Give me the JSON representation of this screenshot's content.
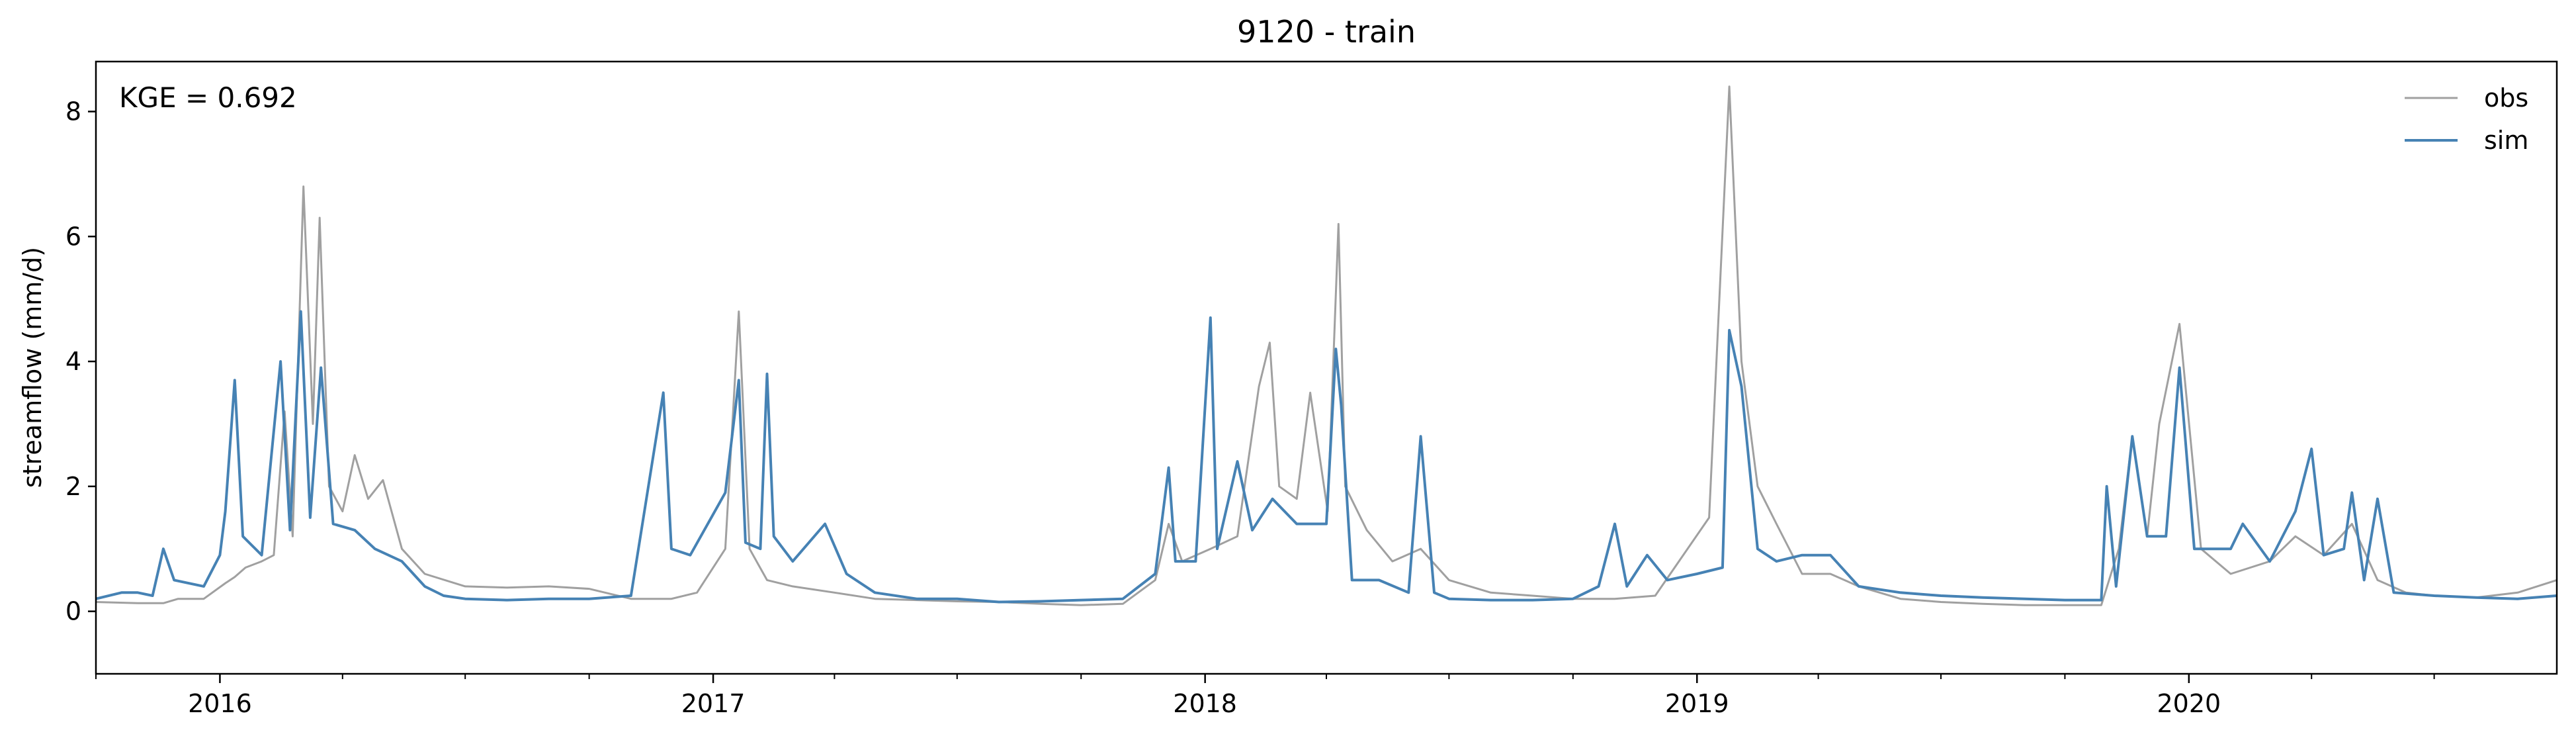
{
  "chart_data": {
    "type": "line",
    "title": "9120 - train",
    "xlabel": "",
    "ylabel": "streamflow (mm/d)",
    "annotation": "KGE = 0.692",
    "legend_placement": "top-right",
    "grid": false,
    "xlim": [
      "2015-10-01",
      "2020-09-30"
    ],
    "ylim": [
      -1,
      8.8
    ],
    "yticks": [
      0,
      2,
      4,
      6,
      8
    ],
    "xticks_major": [
      "2016",
      "2017",
      "2018",
      "2019",
      "2020"
    ],
    "x_major_dates": [
      "2016-01-01",
      "2017-01-01",
      "2018-01-01",
      "2019-01-01",
      "2020-01-01"
    ],
    "series": [
      {
        "name": "obs",
        "color": "#a0a0a0",
        "points": [
          [
            "2015-10-01",
            0.15
          ],
          [
            "2015-11-01",
            0.13
          ],
          [
            "2015-11-20",
            0.13
          ],
          [
            "2015-12-01",
            0.2
          ],
          [
            "2015-12-20",
            0.2
          ],
          [
            "2016-01-05",
            0.45
          ],
          [
            "2016-01-12",
            0.55
          ],
          [
            "2016-01-20",
            0.7
          ],
          [
            "2016-02-01",
            0.8
          ],
          [
            "2016-02-10",
            0.9
          ],
          [
            "2016-02-18",
            3.2
          ],
          [
            "2016-02-24",
            1.2
          ],
          [
            "2016-03-03",
            6.8
          ],
          [
            "2016-03-10",
            3.0
          ],
          [
            "2016-03-15",
            6.3
          ],
          [
            "2016-03-22",
            2.0
          ],
          [
            "2016-04-01",
            1.6
          ],
          [
            "2016-04-10",
            2.5
          ],
          [
            "2016-04-20",
            1.8
          ],
          [
            "2016-05-01",
            2.1
          ],
          [
            "2016-05-15",
            1.0
          ],
          [
            "2016-06-01",
            0.6
          ],
          [
            "2016-07-01",
            0.4
          ],
          [
            "2016-08-01",
            0.38
          ],
          [
            "2016-09-01",
            0.4
          ],
          [
            "2016-10-01",
            0.36
          ],
          [
            "2016-11-01",
            0.2
          ],
          [
            "2016-11-25",
            0.2
          ],
          [
            "2016-12-01",
            0.2
          ],
          [
            "2016-12-20",
            0.3
          ],
          [
            "2017-01-10",
            1.0
          ],
          [
            "2017-01-20",
            4.8
          ],
          [
            "2017-01-28",
            1.0
          ],
          [
            "2017-02-10",
            0.5
          ],
          [
            "2017-03-01",
            0.4
          ],
          [
            "2017-04-01",
            0.3
          ],
          [
            "2017-05-01",
            0.2
          ],
          [
            "2017-06-01",
            0.18
          ],
          [
            "2017-07-01",
            0.16
          ],
          [
            "2017-08-01",
            0.15
          ],
          [
            "2017-09-01",
            0.12
          ],
          [
            "2017-10-01",
            0.1
          ],
          [
            "2017-11-01",
            0.12
          ],
          [
            "2017-11-25",
            0.5
          ],
          [
            "2017-12-05",
            1.4
          ],
          [
            "2017-12-15",
            0.8
          ],
          [
            "2018-01-05",
            1.0
          ],
          [
            "2018-01-25",
            1.2
          ],
          [
            "2018-02-10",
            3.6
          ],
          [
            "2018-02-18",
            4.3
          ],
          [
            "2018-02-25",
            2.0
          ],
          [
            "2018-03-10",
            1.8
          ],
          [
            "2018-03-20",
            3.5
          ],
          [
            "2018-04-02",
            1.6
          ],
          [
            "2018-04-10",
            6.2
          ],
          [
            "2018-04-15",
            2.0
          ],
          [
            "2018-05-01",
            1.3
          ],
          [
            "2018-05-20",
            0.8
          ],
          [
            "2018-06-10",
            1.0
          ],
          [
            "2018-07-01",
            0.5
          ],
          [
            "2018-08-01",
            0.3
          ],
          [
            "2018-09-01",
            0.25
          ],
          [
            "2018-10-01",
            0.2
          ],
          [
            "2018-11-01",
            0.2
          ],
          [
            "2018-12-01",
            0.25
          ],
          [
            "2019-01-10",
            1.5
          ],
          [
            "2019-01-25",
            8.4
          ],
          [
            "2019-02-03",
            4.0
          ],
          [
            "2019-02-15",
            2.0
          ],
          [
            "2019-03-01",
            1.4
          ],
          [
            "2019-03-20",
            0.6
          ],
          [
            "2019-04-10",
            0.6
          ],
          [
            "2019-05-01",
            0.4
          ],
          [
            "2019-06-01",
            0.2
          ],
          [
            "2019-07-01",
            0.15
          ],
          [
            "2019-08-01",
            0.12
          ],
          [
            "2019-09-01",
            0.1
          ],
          [
            "2019-10-01",
            0.1
          ],
          [
            "2019-10-28",
            0.1
          ],
          [
            "2019-11-10",
            1.0
          ],
          [
            "2019-11-20",
            2.8
          ],
          [
            "2019-12-01",
            1.2
          ],
          [
            "2019-12-10",
            3.0
          ],
          [
            "2019-12-25",
            4.6
          ],
          [
            "2020-01-10",
            1.0
          ],
          [
            "2020-02-01",
            0.6
          ],
          [
            "2020-03-01",
            0.8
          ],
          [
            "2020-03-20",
            1.2
          ],
          [
            "2020-04-10",
            0.9
          ],
          [
            "2020-05-01",
            1.4
          ],
          [
            "2020-05-20",
            0.5
          ],
          [
            "2020-06-10",
            0.3
          ],
          [
            "2020-07-01",
            0.25
          ],
          [
            "2020-08-01",
            0.22
          ],
          [
            "2020-09-01",
            0.3
          ],
          [
            "2020-09-30",
            0.5
          ]
        ]
      },
      {
        "name": "sim",
        "color": "#4682b4",
        "points": [
          [
            "2015-10-01",
            0.2
          ],
          [
            "2015-10-20",
            0.3
          ],
          [
            "2015-11-01",
            0.3
          ],
          [
            "2015-11-12",
            0.25
          ],
          [
            "2015-11-20",
            1.0
          ],
          [
            "2015-11-28",
            0.5
          ],
          [
            "2015-12-20",
            0.4
          ],
          [
            "2016-01-01",
            0.9
          ],
          [
            "2016-01-05",
            1.6
          ],
          [
            "2016-01-12",
            3.7
          ],
          [
            "2016-01-18",
            1.2
          ],
          [
            "2016-02-01",
            0.9
          ],
          [
            "2016-02-15",
            4.0
          ],
          [
            "2016-02-22",
            1.3
          ],
          [
            "2016-03-01",
            4.8
          ],
          [
            "2016-03-08",
            1.5
          ],
          [
            "2016-03-16",
            3.9
          ],
          [
            "2016-03-25",
            1.4
          ],
          [
            "2016-04-10",
            1.3
          ],
          [
            "2016-04-25",
            1.0
          ],
          [
            "2016-05-15",
            0.8
          ],
          [
            "2016-06-01",
            0.4
          ],
          [
            "2016-06-15",
            0.25
          ],
          [
            "2016-07-01",
            0.2
          ],
          [
            "2016-08-01",
            0.18
          ],
          [
            "2016-09-01",
            0.2
          ],
          [
            "2016-10-01",
            0.2
          ],
          [
            "2016-11-01",
            0.25
          ],
          [
            "2016-11-25",
            3.5
          ],
          [
            "2016-12-01",
            1.0
          ],
          [
            "2016-12-15",
            0.9
          ],
          [
            "2017-01-10",
            1.9
          ],
          [
            "2017-01-20",
            3.7
          ],
          [
            "2017-01-25",
            1.1
          ],
          [
            "2017-02-05",
            1.0
          ],
          [
            "2017-02-10",
            3.8
          ],
          [
            "2017-02-15",
            1.2
          ],
          [
            "2017-03-01",
            0.8
          ],
          [
            "2017-03-25",
            1.4
          ],
          [
            "2017-04-10",
            0.6
          ],
          [
            "2017-05-01",
            0.3
          ],
          [
            "2017-06-01",
            0.2
          ],
          [
            "2017-07-01",
            0.2
          ],
          [
            "2017-08-01",
            0.15
          ],
          [
            "2017-09-01",
            0.16
          ],
          [
            "2017-10-01",
            0.18
          ],
          [
            "2017-11-01",
            0.2
          ],
          [
            "2017-11-25",
            0.6
          ],
          [
            "2017-12-05",
            2.3
          ],
          [
            "2017-12-10",
            0.8
          ],
          [
            "2017-12-25",
            0.8
          ],
          [
            "2018-01-05",
            4.7
          ],
          [
            "2018-01-10",
            1.0
          ],
          [
            "2018-01-25",
            2.4
          ],
          [
            "2018-02-05",
            1.3
          ],
          [
            "2018-02-20",
            1.8
          ],
          [
            "2018-03-10",
            1.4
          ],
          [
            "2018-04-01",
            1.4
          ],
          [
            "2018-04-08",
            4.2
          ],
          [
            "2018-04-12",
            3.3
          ],
          [
            "2018-04-20",
            0.5
          ],
          [
            "2018-05-10",
            0.5
          ],
          [
            "2018-06-01",
            0.3
          ],
          [
            "2018-06-10",
            2.8
          ],
          [
            "2018-06-20",
            0.3
          ],
          [
            "2018-07-01",
            0.2
          ],
          [
            "2018-08-01",
            0.18
          ],
          [
            "2018-09-01",
            0.18
          ],
          [
            "2018-10-01",
            0.2
          ],
          [
            "2018-10-20",
            0.4
          ],
          [
            "2018-11-01",
            1.4
          ],
          [
            "2018-11-10",
            0.4
          ],
          [
            "2018-11-25",
            0.9
          ],
          [
            "2018-12-10",
            0.5
          ],
          [
            "2019-01-01",
            0.6
          ],
          [
            "2019-01-20",
            0.7
          ],
          [
            "2019-01-25",
            4.5
          ],
          [
            "2019-02-03",
            3.6
          ],
          [
            "2019-02-15",
            1.0
          ],
          [
            "2019-03-01",
            0.8
          ],
          [
            "2019-03-20",
            0.9
          ],
          [
            "2019-04-10",
            0.9
          ],
          [
            "2019-05-01",
            0.4
          ],
          [
            "2019-06-01",
            0.3
          ],
          [
            "2019-07-01",
            0.25
          ],
          [
            "2019-08-01",
            0.22
          ],
          [
            "2019-09-01",
            0.2
          ],
          [
            "2019-10-01",
            0.18
          ],
          [
            "2019-10-28",
            0.18
          ],
          [
            "2019-11-01",
            2.0
          ],
          [
            "2019-11-08",
            0.4
          ],
          [
            "2019-11-20",
            2.8
          ],
          [
            "2019-12-01",
            1.2
          ],
          [
            "2019-12-15",
            1.2
          ],
          [
            "2019-12-25",
            3.9
          ],
          [
            "2020-01-05",
            1.0
          ],
          [
            "2020-02-01",
            1.0
          ],
          [
            "2020-02-10",
            1.4
          ],
          [
            "2020-03-01",
            0.8
          ],
          [
            "2020-03-20",
            1.6
          ],
          [
            "2020-04-01",
            2.6
          ],
          [
            "2020-04-10",
            0.9
          ],
          [
            "2020-04-25",
            1.0
          ],
          [
            "2020-05-01",
            1.9
          ],
          [
            "2020-05-10",
            0.5
          ],
          [
            "2020-05-20",
            1.8
          ],
          [
            "2020-06-01",
            0.3
          ],
          [
            "2020-07-01",
            0.25
          ],
          [
            "2020-08-01",
            0.22
          ],
          [
            "2020-09-01",
            0.2
          ],
          [
            "2020-09-30",
            0.25
          ]
        ]
      }
    ]
  }
}
